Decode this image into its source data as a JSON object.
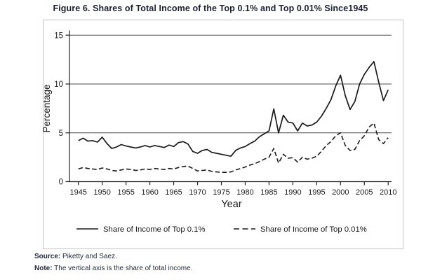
{
  "figure": {
    "title": "Figure 6. Shares of Total Income of the Top 0.1% and Top 0.01% Since1945"
  },
  "chart_data": {
    "type": "line",
    "title": "Figure 6. Shares of Total Income of the Top 0.1% and Top 0.01% Since1945",
    "xlabel": "Year",
    "ylabel": "Percentage",
    "x_ticks": [
      1945,
      1950,
      1955,
      1960,
      1965,
      1970,
      1975,
      1980,
      1985,
      1990,
      1995,
      2000,
      2005,
      2010
    ],
    "y_ticks": [
      0,
      5,
      10,
      15
    ],
    "ylim": [
      0,
      15
    ],
    "xlim": [
      1943,
      2011
    ],
    "grid": "horizontal gridlines at 5, 10 and 15",
    "legend_position": "bottom-center",
    "x": [
      1945,
      1946,
      1947,
      1948,
      1949,
      1950,
      1951,
      1952,
      1953,
      1954,
      1955,
      1956,
      1957,
      1958,
      1959,
      1960,
      1961,
      1962,
      1963,
      1964,
      1965,
      1966,
      1967,
      1968,
      1969,
      1970,
      1971,
      1972,
      1973,
      1974,
      1975,
      1976,
      1977,
      1978,
      1979,
      1980,
      1981,
      1982,
      1983,
      1984,
      1985,
      1986,
      1987,
      1988,
      1989,
      1990,
      1991,
      1992,
      1993,
      1994,
      1995,
      1996,
      1997,
      1998,
      1999,
      2000,
      2001,
      2002,
      2003,
      2004,
      2005,
      2006,
      2007,
      2008,
      2009,
      2010
    ],
    "series": [
      {
        "name": "Share of Income of Top 0.1%",
        "line_style": "solid",
        "values": [
          4.2,
          4.45,
          4.15,
          4.2,
          4.05,
          4.55,
          3.9,
          3.4,
          3.55,
          3.8,
          3.65,
          3.55,
          3.45,
          3.55,
          3.7,
          3.55,
          3.7,
          3.6,
          3.5,
          3.75,
          3.6,
          4.0,
          4.1,
          3.85,
          3.1,
          2.9,
          3.2,
          3.3,
          3.0,
          2.9,
          2.8,
          2.7,
          2.6,
          3.2,
          3.45,
          3.6,
          3.9,
          4.15,
          4.6,
          4.9,
          5.2,
          7.45,
          5.0,
          6.8,
          6.1,
          6.0,
          5.2,
          6.0,
          5.7,
          5.8,
          6.1,
          6.7,
          7.5,
          8.4,
          9.8,
          10.9,
          8.8,
          7.4,
          8.2,
          10.0,
          11.0,
          11.7,
          12.3,
          10.2,
          8.3,
          9.4
        ]
      },
      {
        "name": "Share of Income of Top 0.01%",
        "line_style": "dashed",
        "values": [
          1.3,
          1.45,
          1.35,
          1.3,
          1.25,
          1.4,
          1.3,
          1.15,
          1.1,
          1.2,
          1.3,
          1.25,
          1.15,
          1.2,
          1.3,
          1.25,
          1.35,
          1.3,
          1.25,
          1.35,
          1.3,
          1.45,
          1.55,
          1.6,
          1.35,
          1.1,
          1.15,
          1.2,
          1.05,
          1.0,
          0.95,
          0.95,
          1.0,
          1.2,
          1.35,
          1.5,
          1.7,
          1.85,
          2.05,
          2.3,
          2.5,
          3.4,
          1.9,
          2.8,
          2.4,
          2.45,
          2.0,
          2.5,
          2.3,
          2.4,
          2.6,
          3.1,
          3.7,
          4.1,
          4.7,
          5.0,
          3.7,
          3.2,
          3.3,
          4.2,
          4.7,
          5.6,
          6.0,
          4.3,
          3.9,
          4.5
        ]
      }
    ]
  },
  "legend": {
    "items": [
      {
        "label": "Share of Income of Top 0.1%",
        "line_style": "solid"
      },
      {
        "label": "Share of Income of Top 0.01%",
        "line_style": "dashed"
      }
    ]
  },
  "footer": {
    "source_label": "Source:",
    "source_text": " Piketty and Saez.",
    "note_label": "Note:",
    "note_text": " The vertical axis is the share of total income."
  },
  "colors": {
    "line": "#1a1a1a",
    "grid": "#4d4d4d",
    "frame": "#c2c2c2",
    "heading_text": "#1a2130",
    "background": "#ffffff"
  }
}
